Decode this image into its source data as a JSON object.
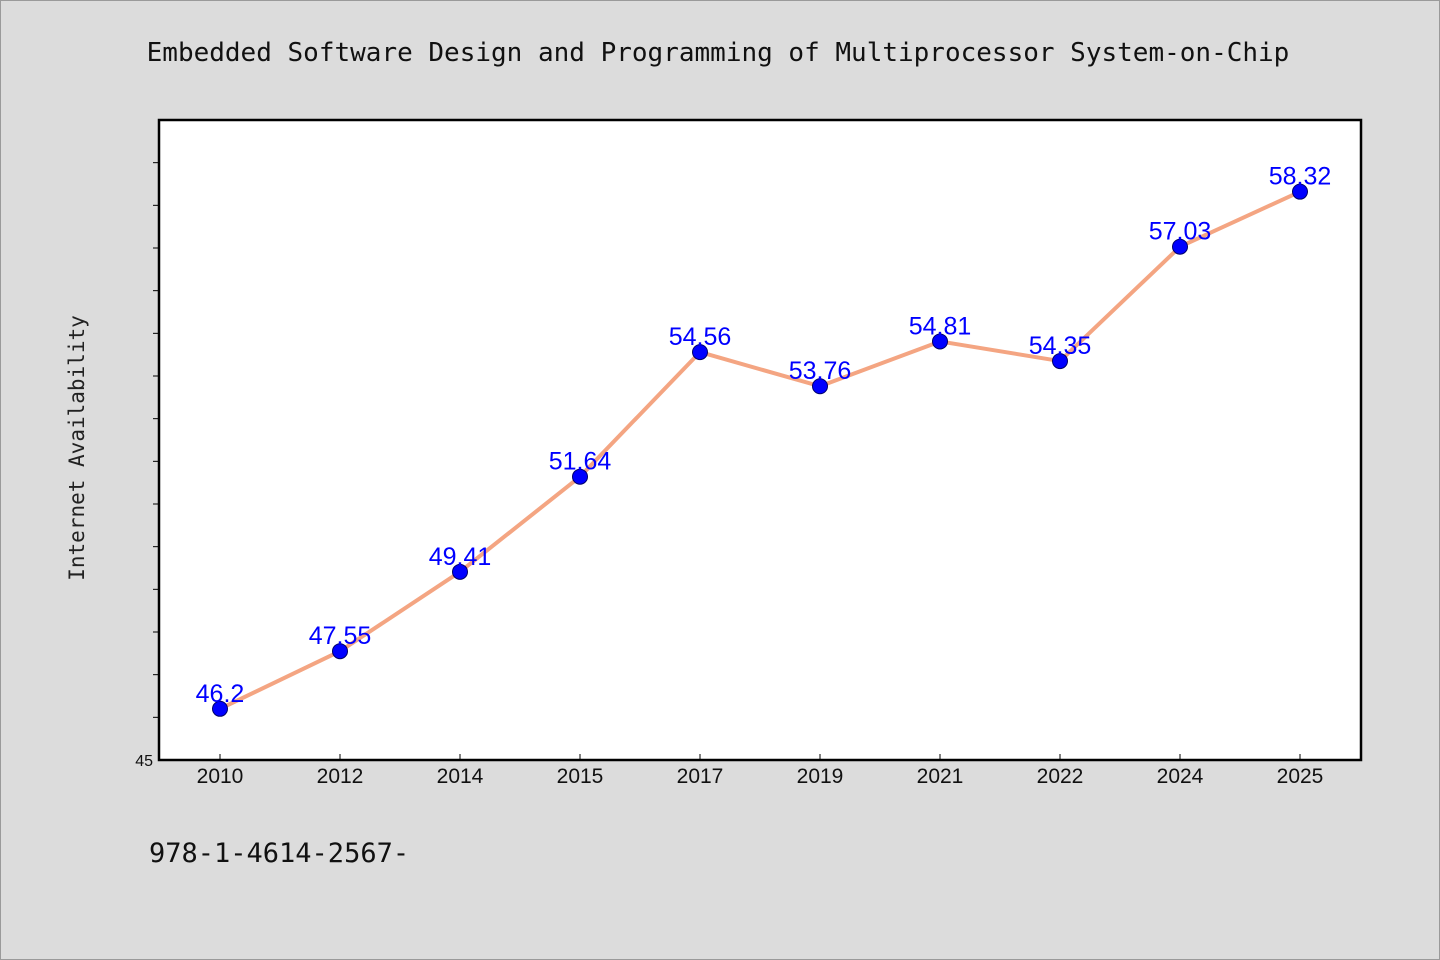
{
  "chart_data": {
    "type": "line",
    "title": "Embedded Software Design and Programming of Multiprocessor System-on-Chip",
    "xlabel": "",
    "ylabel": "Internet Availability",
    "categories": [
      "2010",
      "2012",
      "2014",
      "2015",
      "2017",
      "2019",
      "2021",
      "2022",
      "2024",
      "2025"
    ],
    "series": [
      {
        "values": [
          46.2,
          47.55,
          49.41,
          51.64,
          54.56,
          53.76,
          54.81,
          54.35,
          57.03,
          58.32
        ],
        "labels": [
          "46.2",
          "47.55",
          "49.41",
          "51.64",
          "54.56",
          "53.76",
          "54.81",
          "54.35",
          "57.03",
          "58.32"
        ]
      }
    ],
    "ylim": [
      45,
      60
    ],
    "ytick_labels": [
      "45"
    ],
    "grid": false,
    "legend": "none",
    "colors": {
      "line": "#f4a582",
      "marker": "#0000ff",
      "data_label": "#0000ff",
      "plot_background": "#ffffff",
      "page_background": "#dcdcdc"
    }
  },
  "footer": {
    "text": "978-1-4614-2567-"
  }
}
